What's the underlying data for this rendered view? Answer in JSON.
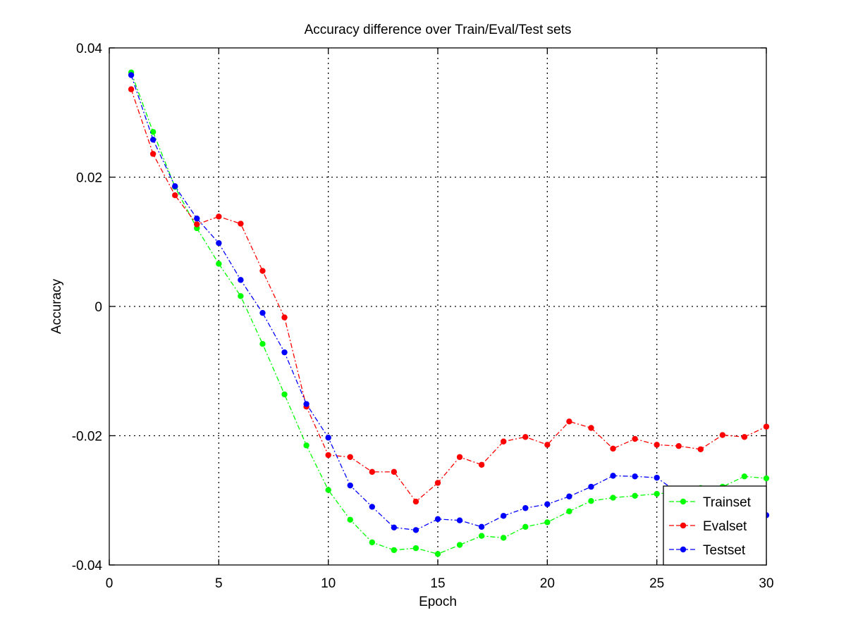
{
  "chart_data": {
    "type": "line",
    "title": "Accuracy difference over Train/Eval/Test sets",
    "xlabel": "Epoch",
    "ylabel": "Accuracy",
    "xlim": [
      0,
      30
    ],
    "ylim": [
      -0.04,
      0.04
    ],
    "xticks": [
      0,
      5,
      10,
      15,
      20,
      25,
      30
    ],
    "yticks": [
      -0.04,
      -0.02,
      0,
      0.02,
      0.04
    ],
    "xtick_labels": [
      "0",
      "5",
      "10",
      "15",
      "20",
      "25",
      "30"
    ],
    "ytick_labels": [
      "-0.04",
      "-0.02",
      "0",
      "0.02",
      "0.04"
    ],
    "grid": true,
    "legend_position": "bottom-right",
    "x": [
      1,
      2,
      3,
      4,
      5,
      6,
      7,
      8,
      9,
      10,
      11,
      12,
      13,
      14,
      15,
      16,
      17,
      18,
      19,
      20,
      21,
      22,
      23,
      24,
      25,
      26,
      27,
      28,
      29,
      30
    ],
    "series": [
      {
        "name": "Trainset",
        "color": "#00ff00",
        "line_style": "dash-dot",
        "values": [
          0.0362,
          0.027,
          0.0185,
          0.0121,
          0.0066,
          0.0016,
          -0.0058,
          -0.0136,
          -0.0215,
          -0.0284,
          -0.033,
          -0.0365,
          -0.0377,
          -0.0374,
          -0.0383,
          -0.0369,
          -0.0355,
          -0.0358,
          -0.0341,
          -0.0334,
          -0.0317,
          -0.0301,
          -0.0296,
          -0.0293,
          -0.029,
          -0.0287,
          -0.0281,
          -0.0279,
          -0.0263,
          -0.0266
        ]
      },
      {
        "name": "Evalset",
        "color": "#ff0000",
        "line_style": "dash-dot",
        "values": [
          0.0336,
          0.0236,
          0.0172,
          0.0127,
          0.0139,
          0.0128,
          0.0055,
          -0.0017,
          -0.0155,
          -0.023,
          -0.0233,
          -0.0256,
          -0.0256,
          -0.0302,
          -0.0273,
          -0.0233,
          -0.0245,
          -0.0209,
          -0.0202,
          -0.0214,
          -0.0178,
          -0.0188,
          -0.022,
          -0.0205,
          -0.0214,
          -0.0216,
          -0.0221,
          -0.0199,
          -0.0202,
          -0.0186
        ]
      },
      {
        "name": "Testset",
        "color": "#0000ff",
        "line_style": "dash-dot",
        "values": [
          0.0358,
          0.0258,
          0.0186,
          0.0136,
          0.0098,
          0.0041,
          -0.001,
          -0.0071,
          -0.0151,
          -0.0203,
          -0.0277,
          -0.031,
          -0.0342,
          -0.0346,
          -0.0329,
          -0.0331,
          -0.0341,
          -0.0324,
          -0.0312,
          -0.0306,
          -0.0294,
          -0.0279,
          -0.0262,
          -0.0263,
          -0.0265,
          -0.0289,
          -0.0302,
          -0.0295,
          -0.029,
          -0.0323
        ]
      }
    ]
  }
}
